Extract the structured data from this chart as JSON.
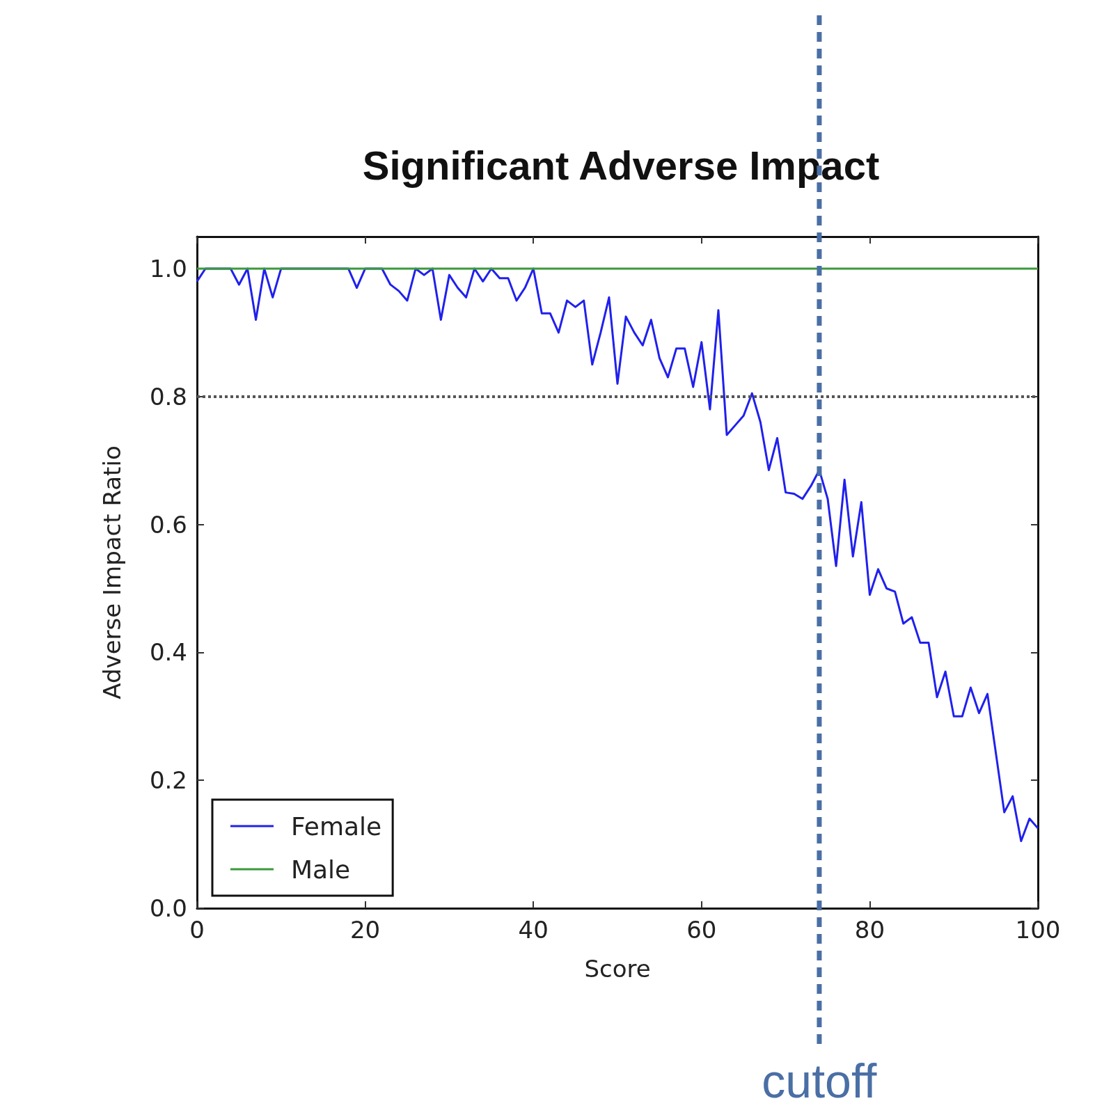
{
  "chart_data": {
    "type": "line",
    "title": "Significant Adverse Impact",
    "xlabel": "Score",
    "ylabel": "Adverse Impact Ratio",
    "xlim": [
      0,
      100
    ],
    "ylim": [
      0,
      1.05
    ],
    "xticks": [
      0,
      20,
      40,
      60,
      80,
      100
    ],
    "yticks": [
      {
        "value": 0,
        "label": "0.0"
      },
      0.2,
      0.4,
      0.6,
      0.8,
      {
        "value": 1,
        "label": "1.0"
      }
    ],
    "series": [
      {
        "name": "Female",
        "color": "#2020ee",
        "x": [
          0,
          1,
          4,
          5,
          6,
          7,
          8,
          9,
          10,
          18,
          19,
          20,
          22,
          23,
          24,
          25,
          26,
          27,
          28,
          29,
          30,
          31,
          32,
          33,
          34,
          35,
          36,
          37,
          38,
          39,
          40,
          41,
          42,
          43,
          44,
          45,
          46,
          47,
          48,
          49,
          50,
          51,
          52,
          53,
          54,
          55,
          56,
          57,
          58,
          59,
          60,
          61,
          62,
          63,
          64,
          65,
          66,
          67,
          68,
          69,
          70,
          71,
          72,
          73,
          74,
          75,
          76,
          77,
          78,
          79,
          80,
          81,
          82,
          83,
          84,
          85,
          86,
          87,
          88,
          89,
          90,
          91,
          92,
          93,
          94,
          96,
          97,
          98,
          99,
          100
        ],
        "values": [
          0.98,
          1.0,
          1.0,
          0.975,
          1.0,
          0.92,
          1.0,
          0.955,
          1.0,
          1.0,
          0.97,
          1.0,
          1.0,
          0.975,
          0.965,
          0.95,
          1.0,
          0.99,
          1.0,
          0.92,
          0.99,
          0.97,
          0.955,
          1.0,
          0.98,
          1.0,
          0.985,
          0.985,
          0.95,
          0.97,
          1.0,
          0.93,
          0.93,
          0.9,
          0.95,
          0.94,
          0.95,
          0.85,
          0.9,
          0.955,
          0.82,
          0.925,
          0.9,
          0.88,
          0.92,
          0.86,
          0.83,
          0.875,
          0.875,
          0.815,
          0.885,
          0.78,
          0.935,
          0.74,
          0.755,
          0.77,
          0.805,
          0.76,
          0.685,
          0.735,
          0.65,
          0.648,
          0.64,
          0.66,
          0.685,
          0.64,
          0.535,
          0.67,
          0.55,
          0.635,
          0.49,
          0.53,
          0.5,
          0.495,
          0.445,
          0.455,
          0.415,
          0.415,
          0.33,
          0.37,
          0.3,
          0.3,
          0.345,
          0.305,
          0.335,
          0.15,
          0.175,
          0.105,
          0.14,
          0.125
        ]
      },
      {
        "name": "Male",
        "color": "#3a9a3a",
        "x": [
          0,
          100
        ],
        "values": [
          1,
          1
        ]
      }
    ],
    "ref_lines": [
      {
        "axis": "y",
        "value": 0.8,
        "color": "#555555",
        "line_style": "dotted"
      },
      {
        "axis": "x",
        "value": 74,
        "label": "cutoff",
        "color": "#4a6fa5",
        "line_style": "dashed"
      }
    ],
    "legend": "bottom left",
    "grid": false,
    "marker": "none",
    "line_style": "solid"
  }
}
